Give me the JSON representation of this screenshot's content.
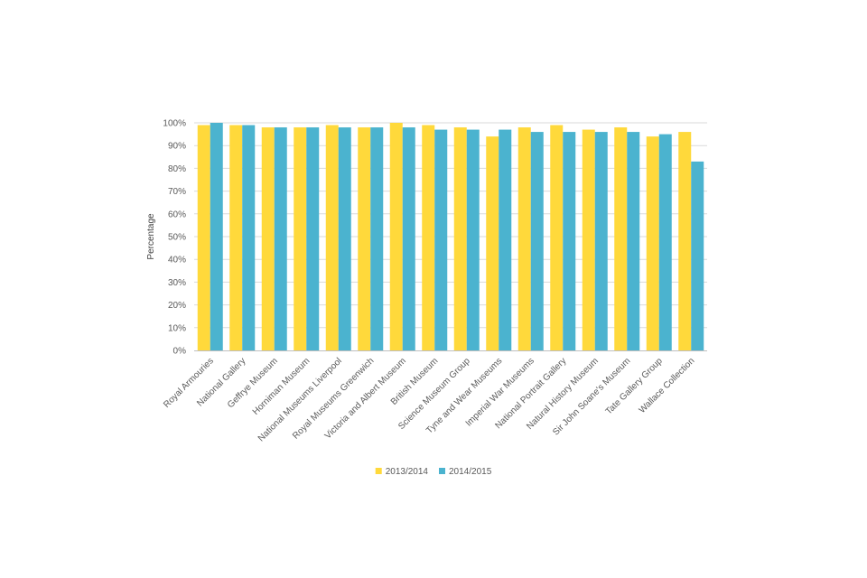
{
  "chart_data": {
    "type": "bar",
    "title": "",
    "xlabel": "",
    "ylabel": "Percentage",
    "ylim": [
      0,
      100
    ],
    "y_ticks": [
      0,
      10,
      20,
      30,
      40,
      50,
      60,
      70,
      80,
      90,
      100
    ],
    "y_tick_format": "percent",
    "grid": true,
    "legend_position": "bottom",
    "categories": [
      "Royal Armouries",
      "National Gallery",
      "Geffrye Museum",
      "Horniman Museum",
      "National Museums Liverpool",
      "Royal Museums Greenwich",
      "Victoria and Albert Museum",
      "British Museum",
      "Science Museum Group",
      "Tyne and Wear Museums",
      "Imperial War Museums",
      "National Portrait Gallery",
      "Natural History Museum",
      "Sir John Soane's Museum",
      "Tate Gallery Group",
      "Wallace Collection"
    ],
    "series": [
      {
        "name": "2013/2014",
        "color": "#FFD93B",
        "values": [
          99,
          99,
          98,
          98,
          99,
          98,
          100,
          99,
          98,
          94,
          98,
          99,
          97,
          98,
          94,
          96
        ]
      },
      {
        "name": "2014/2015",
        "color": "#4BB3CF",
        "values": [
          100,
          99,
          98,
          98,
          98,
          98,
          98,
          97,
          97,
          97,
          96,
          96,
          96,
          96,
          95,
          83
        ]
      }
    ]
  }
}
